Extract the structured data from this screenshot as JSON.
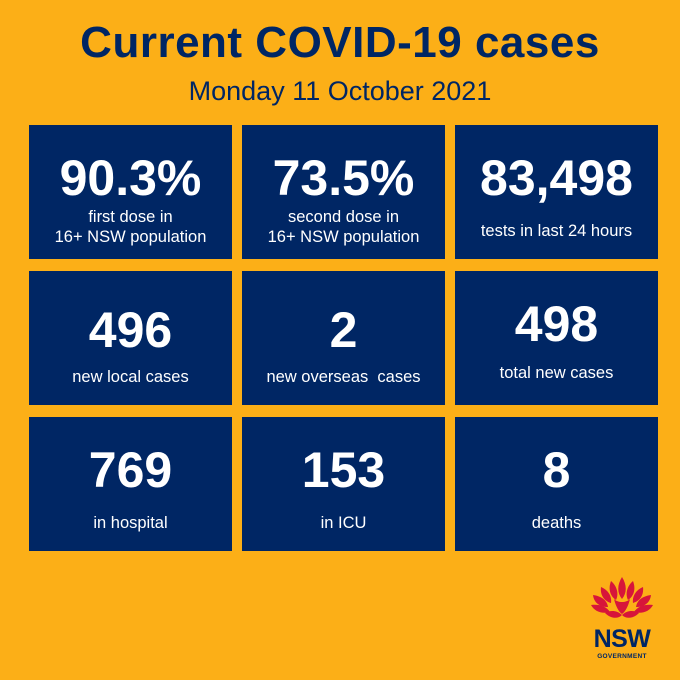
{
  "header": {
    "title": "Current COVID-19 cases",
    "date": "Monday 11 October 2021"
  },
  "colors": {
    "background": "#FCAF17",
    "card": "#002664",
    "text_dark": "#002664",
    "logo_red": "#D7153A"
  },
  "stats": [
    {
      "value": "90.3%",
      "label_line1": "first dose in",
      "label_line2": "16+ NSW population"
    },
    {
      "value": "73.5%",
      "label_line1": "second dose in",
      "label_line2": "16+ NSW population"
    },
    {
      "value": "83,498",
      "label_line1": "tests in last 24 hours",
      "label_line2": ""
    },
    {
      "value": "496",
      "label_line1": "new local cases",
      "label_line2": ""
    },
    {
      "value": "2",
      "label_line1": "new overseas  cases",
      "label_line2": ""
    },
    {
      "value": "498",
      "label_line1": "total new cases",
      "label_line2": ""
    },
    {
      "value": "769",
      "label_line1": "in hospital",
      "label_line2": ""
    },
    {
      "value": "153",
      "label_line1": "in ICU",
      "label_line2": ""
    },
    {
      "value": "8",
      "label_line1": "deaths",
      "label_line2": ""
    }
  ],
  "logo": {
    "icon": "waratah-icon",
    "name": "NSW",
    "sub": "GOVERNMENT"
  }
}
